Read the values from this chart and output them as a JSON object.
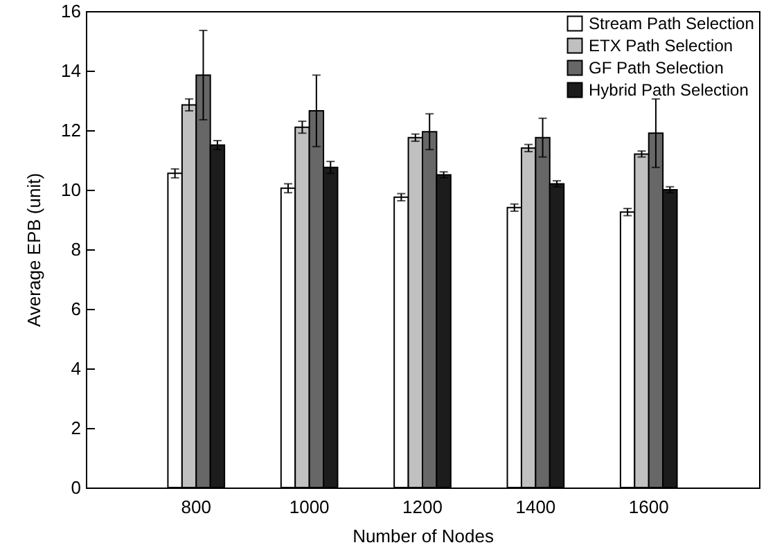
{
  "chart_data": {
    "type": "bar",
    "xlabel": "Number of Nodes",
    "ylabel": "Average EPB (unit)",
    "categories": [
      "800",
      "1000",
      "1200",
      "1400",
      "1600"
    ],
    "series": [
      {
        "name": "Stream Path Selection",
        "color": "#ffffff",
        "values": [
          10.55,
          10.05,
          9.75,
          9.4,
          9.25
        ],
        "errors": [
          0.15,
          0.15,
          0.12,
          0.12,
          0.12
        ]
      },
      {
        "name": "ETX Path Selection",
        "color": "#c0c0c0",
        "values": [
          12.85,
          12.1,
          11.75,
          11.4,
          11.2
        ],
        "errors": [
          0.2,
          0.2,
          0.12,
          0.12,
          0.1
        ]
      },
      {
        "name": "GF Path Selection",
        "color": "#676767",
        "values": [
          13.85,
          12.65,
          11.95,
          11.75,
          11.9
        ],
        "errors": [
          1.5,
          1.2,
          0.6,
          0.65,
          1.15
        ]
      },
      {
        "name": "Hybrid Path Selection",
        "color": "#1c1c1c",
        "values": [
          11.5,
          10.75,
          10.5,
          10.2,
          10.0
        ],
        "errors": [
          0.15,
          0.2,
          0.1,
          0.1,
          0.1
        ]
      }
    ],
    "ylim": [
      0,
      16
    ],
    "yticks": [
      0,
      2,
      4,
      6,
      8,
      10,
      12,
      14,
      16
    ],
    "grid": false,
    "legend": "top right"
  }
}
